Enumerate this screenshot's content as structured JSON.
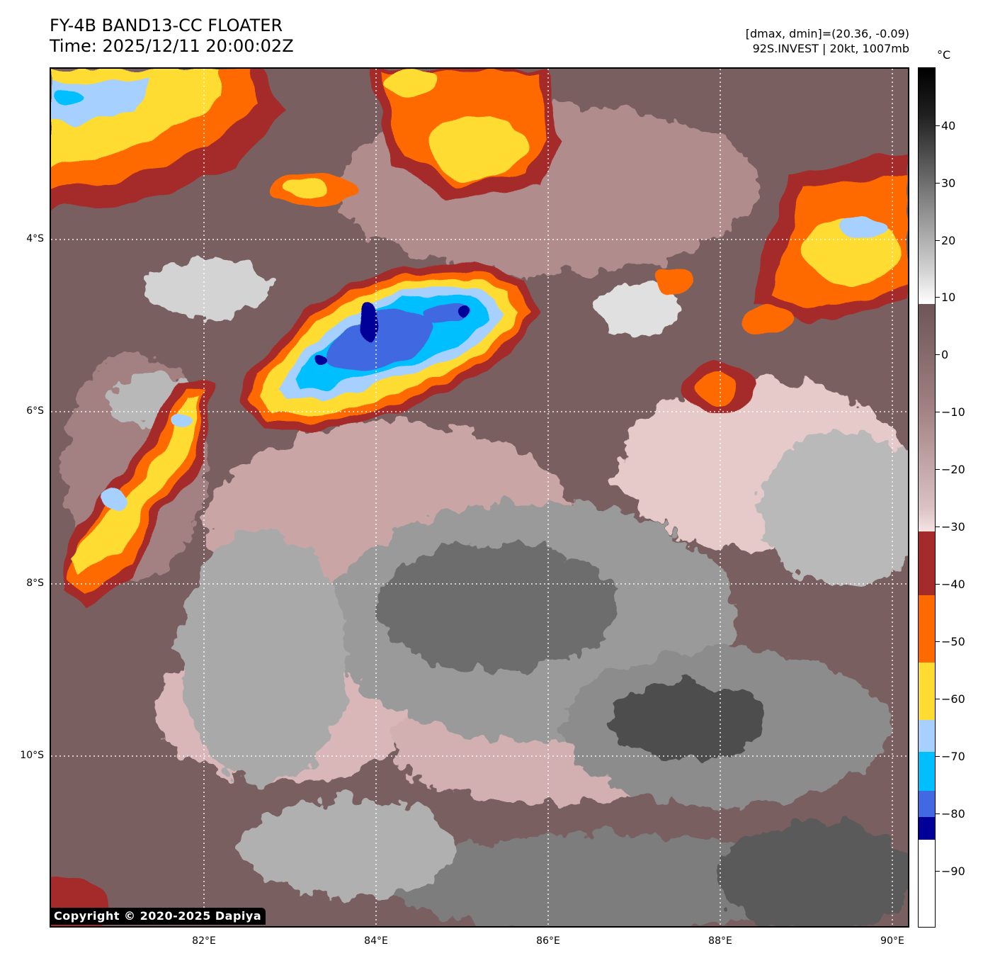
{
  "header": {
    "title_line1": "FY-4B BAND13-CC FLOATER",
    "title_line2": "Time: 2025/12/11 20:00:02Z",
    "range_text": "[dmax, dmin]=(20.36, -0.09)",
    "storm_text": "92S.INVEST | 20kt, 1007mb"
  },
  "map": {
    "lat_labels": [
      "4°S",
      "6°S",
      "8°S",
      "10°S"
    ],
    "lon_labels": [
      "82°E",
      "84°E",
      "86°E",
      "88°E",
      "90°E"
    ],
    "copyright": "Copyright © 2020-2025 Dapiya"
  },
  "colorbar": {
    "unit": "°C",
    "tick_labels": [
      "40",
      "30",
      "20",
      "10",
      "0",
      "−10",
      "−20",
      "−30",
      "−40",
      "−50",
      "−60",
      "−70",
      "−80",
      "−90"
    ],
    "colors": {
      "white": "#ffffff",
      "navy": "#000099",
      "royal_blue": "#4169e1",
      "deep_sky": "#00bfff",
      "light_blue": "#a6d0ff",
      "gold": "#ffdc32",
      "orange": "#ff6a00",
      "brick": "#a52a2a",
      "rose_light": "#f0d8d8",
      "brown_dark": "#6e5556",
      "gray_mid": "#808080",
      "black": "#000000"
    }
  }
}
